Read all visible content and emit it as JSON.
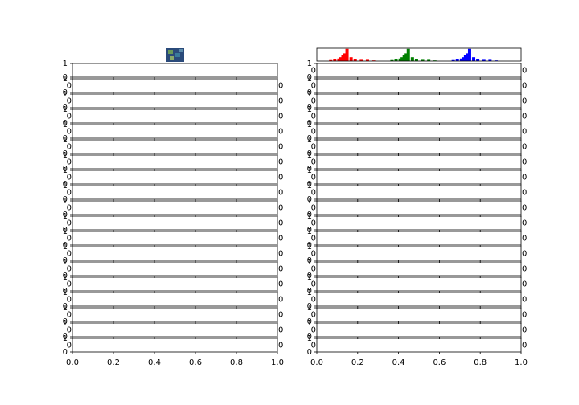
{
  "chart_data": [
    {
      "type": "histogram",
      "xlim": [
        0,
        1
      ],
      "ylim": [
        0,
        1
      ],
      "series": [
        {
          "color": "#ff0000",
          "x": [
            0.06,
            0.08,
            0.1,
            0.11,
            0.12,
            0.13,
            0.14,
            0.16,
            0.18,
            0.21,
            0.24,
            0.27
          ],
          "values": [
            0.08,
            0.15,
            0.2,
            0.3,
            0.45,
            0.6,
            0.95,
            0.3,
            0.15,
            0.1,
            0.1,
            0.05
          ]
        },
        {
          "color": "#008000",
          "x": [
            0.36,
            0.38,
            0.4,
            0.41,
            0.42,
            0.43,
            0.44,
            0.46,
            0.48,
            0.51,
            0.54,
            0.57
          ],
          "values": [
            0.08,
            0.15,
            0.2,
            0.3,
            0.45,
            0.6,
            0.95,
            0.3,
            0.15,
            0.1,
            0.1,
            0.05
          ]
        },
        {
          "color": "#0000ff",
          "x": [
            0.66,
            0.68,
            0.7,
            0.71,
            0.72,
            0.73,
            0.74,
            0.76,
            0.78,
            0.81,
            0.84,
            0.87
          ],
          "values": [
            0.08,
            0.15,
            0.2,
            0.3,
            0.45,
            0.6,
            0.95,
            0.3,
            0.15,
            0.1,
            0.1,
            0.05
          ]
        }
      ]
    },
    {
      "type": "stack",
      "xlim": [
        0,
        1
      ],
      "xticks": [
        {
          "value": 0,
          "label": "0.0"
        },
        {
          "value": 0.2,
          "label": "0.2"
        },
        {
          "value": 0.4,
          "label": "0.4"
        },
        {
          "value": 0.6,
          "label": "0.6"
        },
        {
          "value": 0.8,
          "label": "0.8"
        },
        {
          "value": 1,
          "label": "1.0"
        }
      ],
      "panels": [
        {
          "ylim": [
            0,
            1
          ],
          "yticks": [
            0,
            1
          ]
        },
        {
          "ylim": [
            0,
            1
          ],
          "yticks": [
            0,
            1
          ],
          "y2ticks": [
            0
          ]
        },
        {
          "ylim": [
            0,
            1
          ],
          "yticks": [
            0,
            1
          ],
          "y2ticks": [
            0
          ]
        },
        {
          "ylim": [
            0,
            1
          ],
          "yticks": [
            0,
            1
          ],
          "y2ticks": [
            0
          ]
        },
        {
          "ylim": [
            0,
            1
          ],
          "yticks": [
            0,
            1
          ],
          "y2ticks": [
            0
          ]
        },
        {
          "ylim": [
            0,
            1
          ],
          "yticks": [
            0,
            1
          ],
          "y2ticks": [
            0
          ]
        },
        {
          "ylim": [
            0,
            1
          ],
          "yticks": [
            0,
            1
          ],
          "y2ticks": [
            0
          ]
        },
        {
          "ylim": [
            0,
            1
          ],
          "yticks": [
            0,
            1
          ],
          "y2ticks": [
            0
          ]
        },
        {
          "ylim": [
            0,
            1
          ],
          "yticks": [
            0,
            1
          ],
          "y2ticks": [
            0
          ]
        },
        {
          "ylim": [
            0,
            1
          ],
          "yticks": [
            0,
            1
          ],
          "y2ticks": [
            0
          ]
        },
        {
          "ylim": [
            0,
            1
          ],
          "yticks": [
            0,
            1
          ],
          "y2ticks": [
            0
          ]
        },
        {
          "ylim": [
            0,
            1
          ],
          "yticks": [
            0,
            1
          ],
          "y2ticks": [
            0
          ]
        },
        {
          "ylim": [
            0,
            1
          ],
          "yticks": [
            0,
            1
          ],
          "y2ticks": [
            0
          ]
        },
        {
          "ylim": [
            0,
            1
          ],
          "yticks": [
            0,
            1
          ],
          "y2ticks": [
            0
          ]
        },
        {
          "ylim": [
            0,
            1
          ],
          "yticks": [
            0,
            1
          ],
          "y2ticks": [
            0
          ]
        },
        {
          "ylim": [
            0,
            1
          ],
          "yticks": [
            0,
            1
          ],
          "y2ticks": [
            0
          ]
        },
        {
          "ylim": [
            0,
            1
          ],
          "yticks": [
            0,
            1
          ],
          "y2ticks": [
            0
          ]
        },
        {
          "ylim": [
            0,
            1
          ],
          "yticks": [
            0,
            1
          ],
          "y2ticks": [
            0
          ]
        },
        {
          "ylim": [
            0,
            1
          ],
          "yticks": [
            0,
            1
          ],
          "y2ticks": [
            0
          ]
        }
      ]
    },
    {
      "type": "stack",
      "xlim": [
        0,
        1
      ],
      "xticks": [
        {
          "value": 0,
          "label": "0.0"
        },
        {
          "value": 0.2,
          "label": "0.2"
        },
        {
          "value": 0.4,
          "label": "0.4"
        },
        {
          "value": 0.6,
          "label": "0.6"
        },
        {
          "value": 0.8,
          "label": "0.8"
        },
        {
          "value": 1,
          "label": "1.0"
        }
      ],
      "panels": [
        {
          "ylim": [
            0,
            1
          ],
          "yticks": [
            0,
            1
          ],
          "y2ticks": [
            0
          ]
        },
        {
          "ylim": [
            0,
            1
          ],
          "yticks": [
            0,
            1
          ],
          "y2ticks": [
            0
          ]
        },
        {
          "ylim": [
            0,
            1
          ],
          "yticks": [
            0,
            1
          ],
          "y2ticks": [
            0
          ]
        },
        {
          "ylim": [
            0,
            1
          ],
          "yticks": [
            0,
            1
          ],
          "y2ticks": [
            0
          ]
        },
        {
          "ylim": [
            0,
            1
          ],
          "yticks": [
            0,
            1
          ],
          "y2ticks": [
            0
          ]
        },
        {
          "ylim": [
            0,
            1
          ],
          "yticks": [
            0,
            1
          ],
          "y2ticks": [
            0
          ]
        },
        {
          "ylim": [
            0,
            1
          ],
          "yticks": [
            0,
            1
          ],
          "y2ticks": [
            0
          ]
        },
        {
          "ylim": [
            0,
            1
          ],
          "yticks": [
            0,
            1
          ],
          "y2ticks": [
            0
          ]
        },
        {
          "ylim": [
            0,
            1
          ],
          "yticks": [
            0,
            1
          ],
          "y2ticks": [
            0
          ]
        },
        {
          "ylim": [
            0,
            1
          ],
          "yticks": [
            0,
            1
          ],
          "y2ticks": [
            0
          ]
        },
        {
          "ylim": [
            0,
            1
          ],
          "yticks": [
            0,
            1
          ],
          "y2ticks": [
            0
          ]
        },
        {
          "ylim": [
            0,
            1
          ],
          "yticks": [
            0,
            1
          ],
          "y2ticks": [
            0
          ]
        },
        {
          "ylim": [
            0,
            1
          ],
          "yticks": [
            0,
            1
          ],
          "y2ticks": [
            0
          ]
        },
        {
          "ylim": [
            0,
            1
          ],
          "yticks": [
            0,
            1
          ],
          "y2ticks": [
            0
          ]
        },
        {
          "ylim": [
            0,
            1
          ],
          "yticks": [
            0,
            1
          ],
          "y2ticks": [
            0
          ]
        },
        {
          "ylim": [
            0,
            1
          ],
          "yticks": [
            0,
            1
          ],
          "y2ticks": [
            0
          ]
        },
        {
          "ylim": [
            0,
            1
          ],
          "yticks": [
            0,
            1
          ],
          "y2ticks": [
            0
          ]
        },
        {
          "ylim": [
            0,
            1
          ],
          "yticks": [
            0,
            1
          ],
          "y2ticks": [
            0
          ]
        },
        {
          "ylim": [
            0,
            1
          ],
          "yticks": [
            0,
            1
          ],
          "y2ticks": [
            0
          ]
        }
      ]
    }
  ]
}
